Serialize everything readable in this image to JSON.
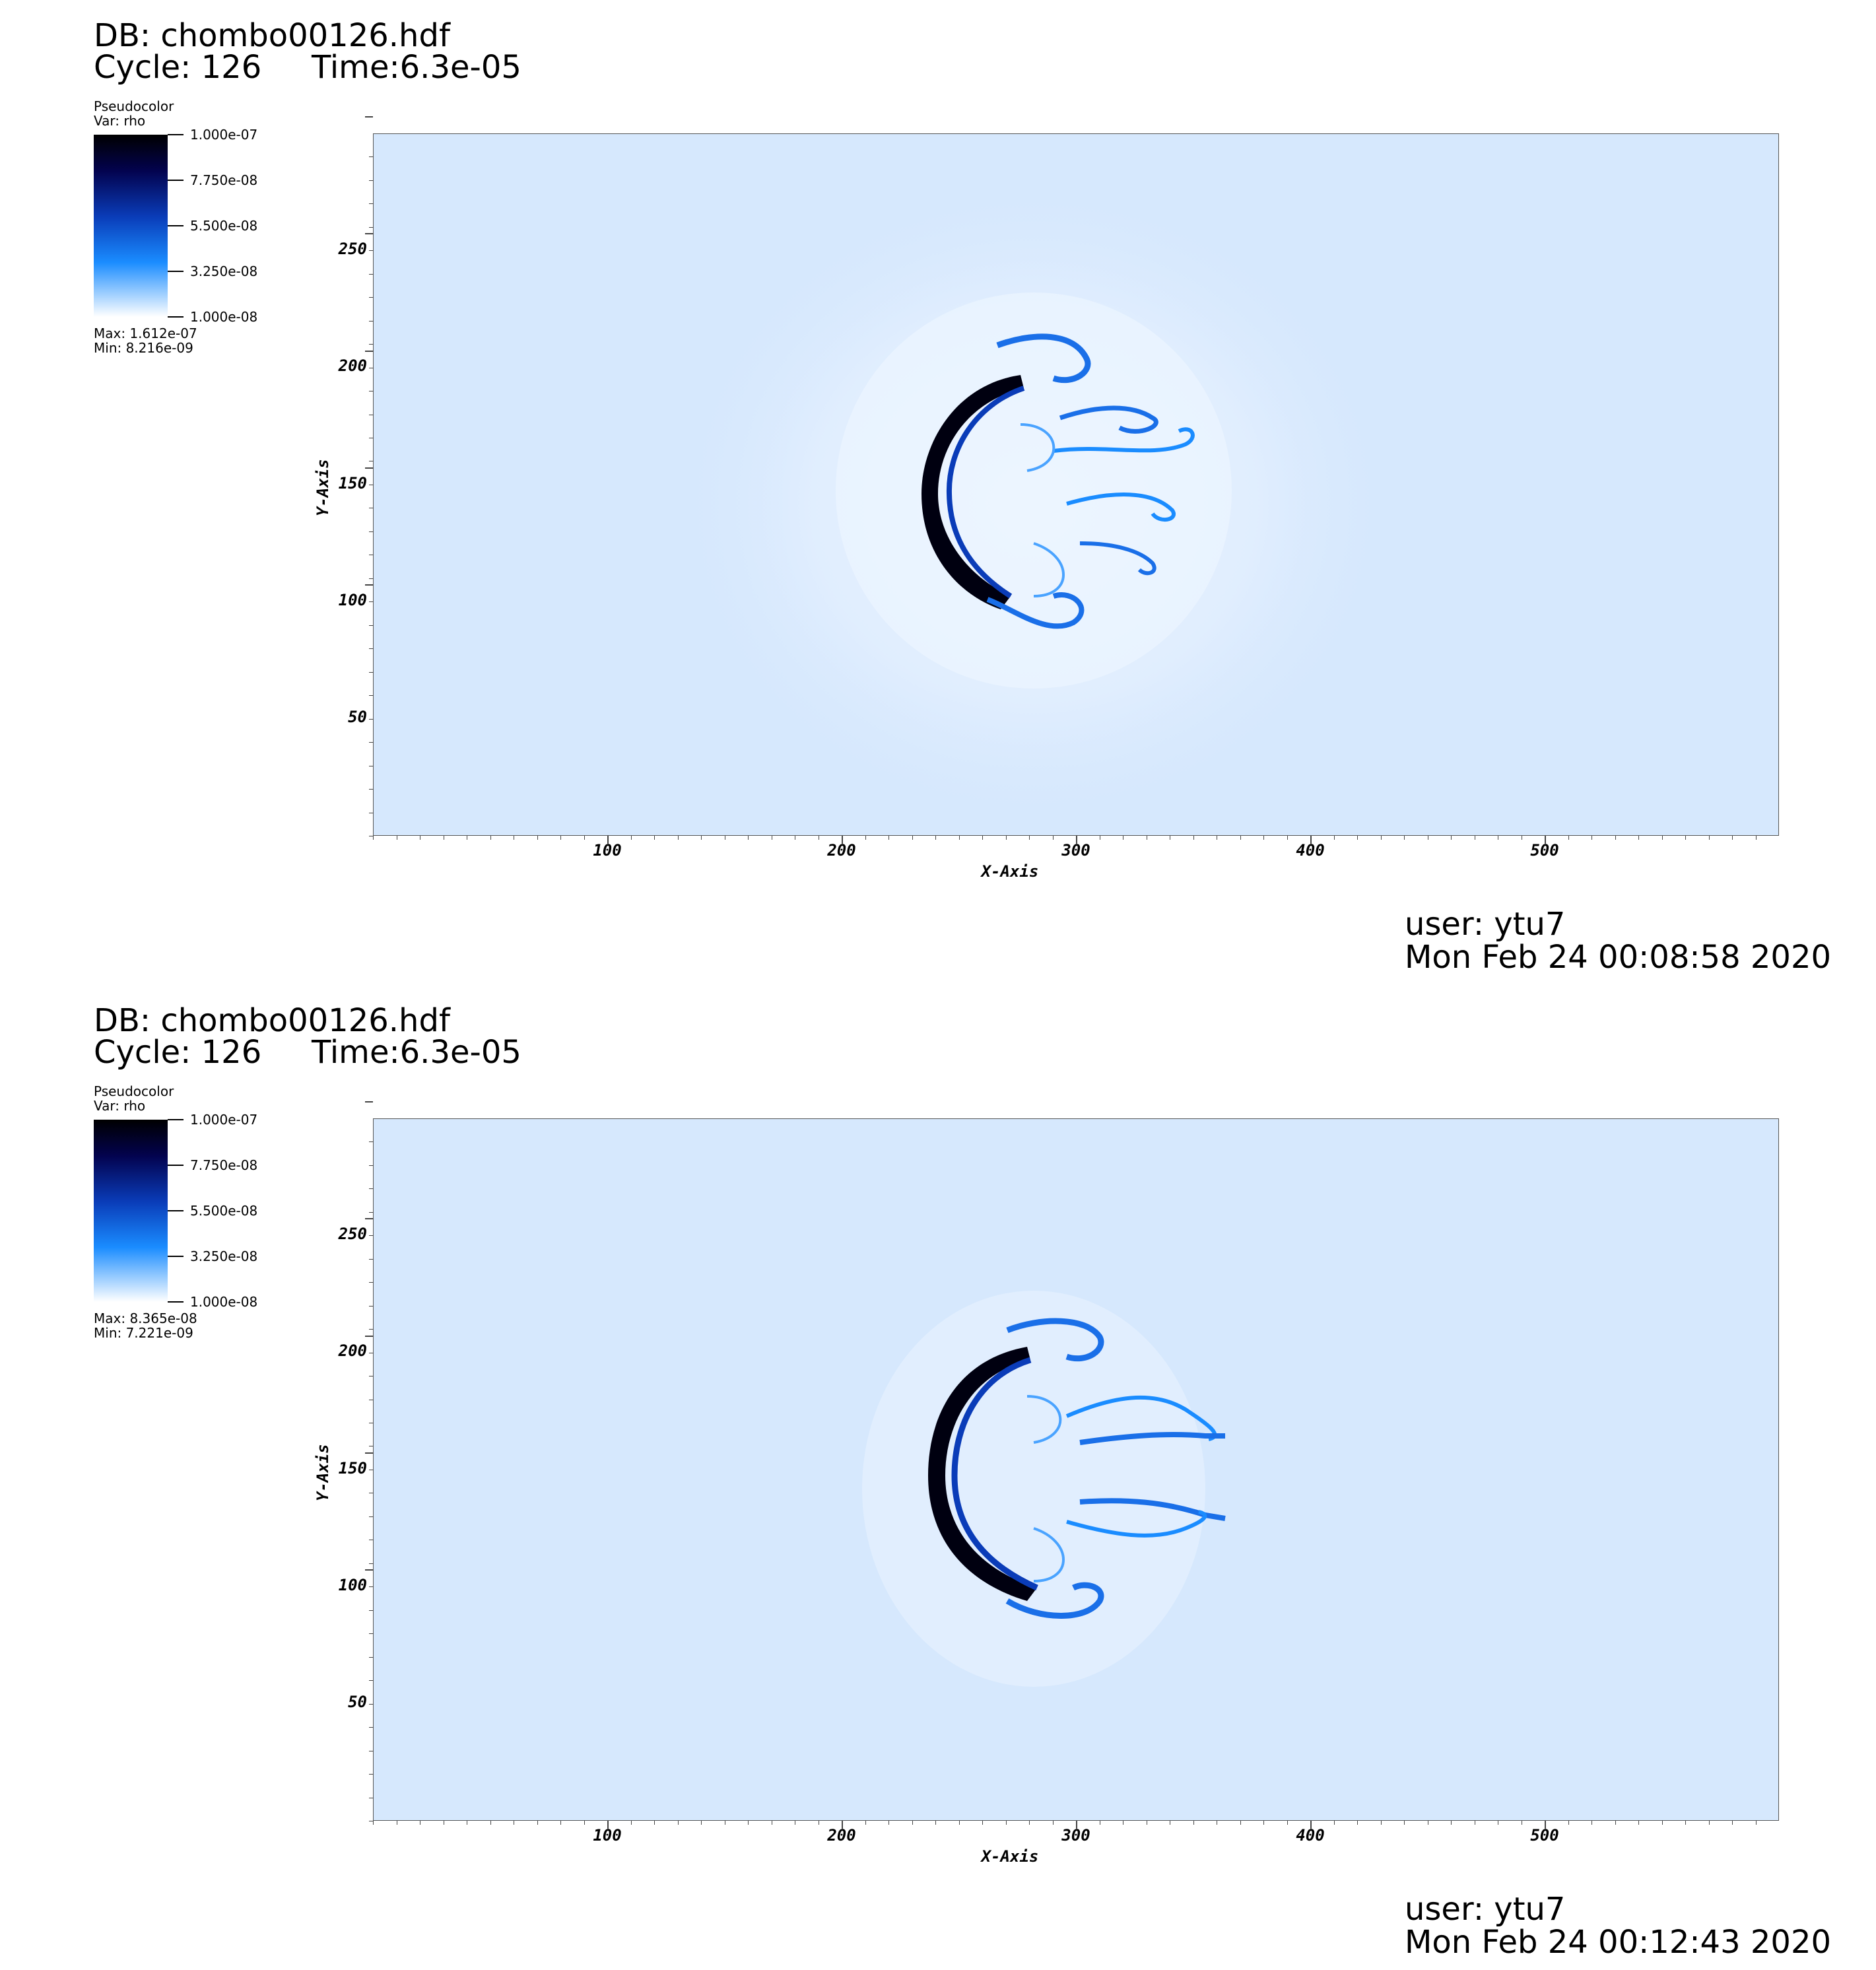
{
  "panels": [
    {
      "db": "DB: chombo00126.hdf",
      "cycle": "Cycle: 126",
      "time": "Time:6.3e-05",
      "legend": {
        "plot_type": "Pseudocolor",
        "var": "Var: rho",
        "ticks": [
          "1.000e-07",
          "7.750e-08",
          "5.500e-08",
          "3.250e-08",
          "1.000e-08"
        ],
        "max": "Max:  1.612e-07",
        "min": "Min:  8.216e-09"
      },
      "user": "user: ytu7",
      "date": "Mon Feb 24 00:08:58 2020"
    },
    {
      "db": "DB: chombo00126.hdf",
      "cycle": "Cycle: 126",
      "time": "Time:6.3e-05",
      "legend": {
        "plot_type": "Pseudocolor",
        "var": "Var: rho",
        "ticks": [
          "1.000e-07",
          "7.750e-08",
          "5.500e-08",
          "3.250e-08",
          "1.000e-08"
        ],
        "max": "Max:  8.365e-08",
        "min": "Min:  7.221e-09"
      },
      "user": "user: ytu7",
      "date": "Mon Feb 24 00:12:43 2020"
    }
  ],
  "chart_data": [
    {
      "type": "heatmap",
      "title": "",
      "xlabel": "X-Axis",
      "ylabel": "Y-Axis",
      "xlim": [
        0,
        600
      ],
      "ylim": [
        0,
        300
      ],
      "xticks": [
        "100",
        "200",
        "300",
        "400",
        "500"
      ],
      "yticks": [
        "50",
        "100",
        "150",
        "200",
        "250"
      ],
      "variable": "rho",
      "colorbar": [
        "1.000e-07",
        "7.750e-08",
        "5.500e-08",
        "3.250e-08",
        "1.000e-08"
      ],
      "colors": {
        "background": "#d6e8fd",
        "front": "#000000",
        "mid": "#0a3cb8",
        "light": "#1a8cff"
      }
    },
    {
      "type": "heatmap",
      "title": "",
      "xlabel": "X-Axis",
      "ylabel": "Y-Axis",
      "xlim": [
        0,
        600
      ],
      "ylim": [
        0,
        300
      ],
      "xticks": [
        "100",
        "200",
        "300",
        "400",
        "500"
      ],
      "yticks": [
        "50",
        "100",
        "150",
        "200",
        "250"
      ],
      "variable": "rho",
      "colorbar": [
        "1.000e-07",
        "7.750e-08",
        "5.500e-08",
        "3.250e-08",
        "1.000e-08"
      ],
      "colors": {
        "background": "#d6e8fd",
        "front": "#000000",
        "mid": "#0a3cb8",
        "light": "#1a8cff"
      }
    }
  ]
}
